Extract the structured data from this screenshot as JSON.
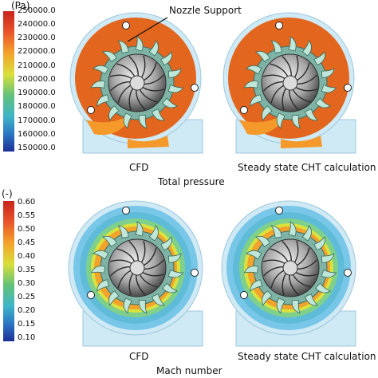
{
  "colorbar_pressure": {
    "unit": "(Pa)",
    "ticks": [
      "250000.0",
      "240000.0",
      "230000.0",
      "220000.0",
      "210000.0",
      "200000.0",
      "190000.0",
      "180000.0",
      "170000.0",
      "160000.0",
      "150000.0"
    ]
  },
  "colorbar_mach": {
    "unit": "(-)",
    "ticks": [
      "0.60",
      "0.55",
      "0.50",
      "0.45",
      "0.40",
      "0.35",
      "0.30",
      "0.25",
      "0.20",
      "0.15",
      "0.10"
    ]
  },
  "annotation": {
    "label": "Nozzle Support"
  },
  "panels": {
    "left_label": "CFD",
    "right_label": "Steady state CHT calculation"
  },
  "rows": {
    "top_caption": "Total pressure",
    "bottom_caption": "Mach number"
  },
  "colors": {
    "pressure_bg": "#e2661e",
    "pressure_edge": "#f59a2a",
    "mach_outer": "#78c6e8",
    "mach_mid": "#7fd08b",
    "housing": "#cfe9f5"
  }
}
